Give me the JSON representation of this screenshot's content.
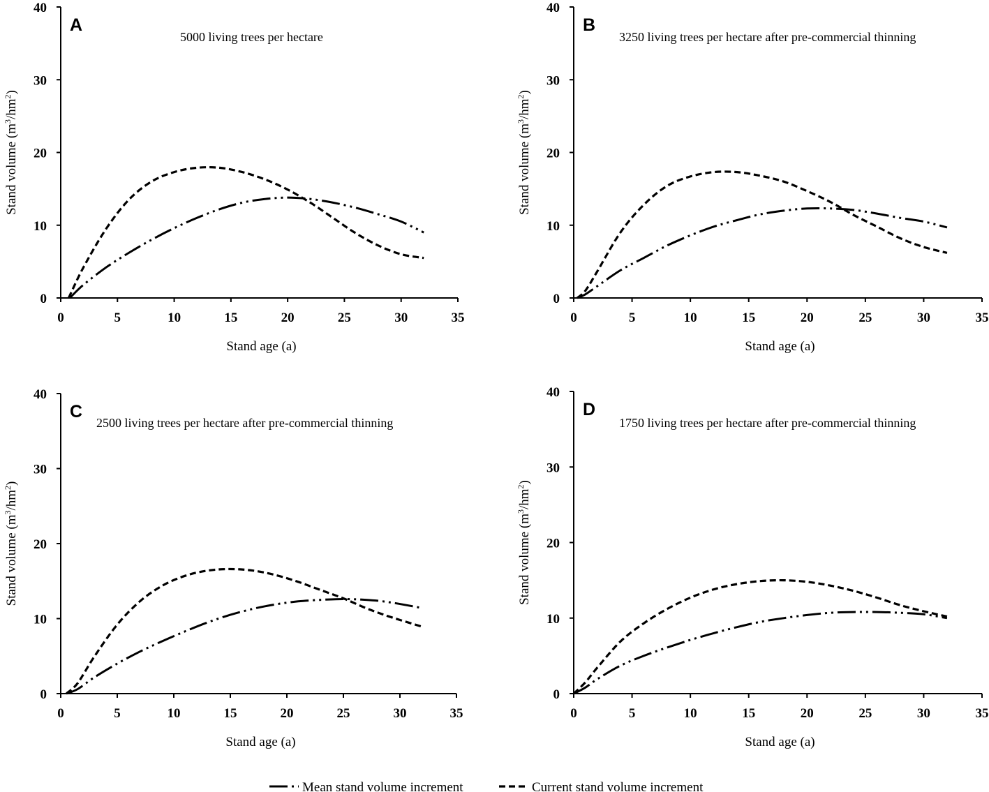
{
  "legend": {
    "mean": "Mean stand volume increment",
    "current": "Current stand volume increment"
  },
  "chart_data": [
    {
      "panel": "A",
      "type": "line",
      "title": "5000 living trees per hectare",
      "xlabel": "Stand age (a)",
      "ylabel": "Stand volume (m3/hm2)",
      "xlim": [
        0,
        35
      ],
      "ylim": [
        0,
        40
      ],
      "xticks": [
        0,
        5,
        10,
        15,
        20,
        25,
        30,
        35
      ],
      "yticks": [
        0,
        10,
        20,
        30,
        40
      ],
      "series": [
        {
          "name": "Mean stand volume increment",
          "style": "dash-dot-dot",
          "x": [
            0.8,
            2,
            4,
            6,
            8,
            10,
            12,
            14,
            16,
            18,
            20,
            22,
            24,
            26,
            28,
            30,
            32
          ],
          "y": [
            0,
            1.8,
            4.2,
            6.2,
            8.0,
            9.6,
            11.0,
            12.2,
            13.1,
            13.6,
            13.8,
            13.6,
            13.1,
            12.4,
            11.5,
            10.5,
            9.0
          ]
        },
        {
          "name": "Current stand volume increment",
          "style": "dash",
          "x": [
            0.7,
            2,
            4,
            6,
            8,
            10,
            12,
            14,
            16,
            18,
            20,
            22,
            24,
            26,
            28,
            30,
            32
          ],
          "y": [
            0,
            4.2,
            9.5,
            13.5,
            16.0,
            17.3,
            17.9,
            17.9,
            17.3,
            16.3,
            14.9,
            13.1,
            11.0,
            8.9,
            7.2,
            6.0,
            5.5
          ]
        }
      ]
    },
    {
      "panel": "B",
      "type": "line",
      "title": "3250 living trees per hectare after pre-commercial thinning",
      "xlabel": "Stand age (a)",
      "ylabel": "Stand volume (m3/hm2)",
      "xlim": [
        0,
        35
      ],
      "ylim": [
        0,
        40
      ],
      "xticks": [
        0,
        5,
        10,
        15,
        20,
        25,
        30,
        35
      ],
      "yticks": [
        0,
        10,
        20,
        30,
        40
      ],
      "series": [
        {
          "name": "Mean stand volume increment",
          "style": "dash-dot-dot",
          "x": [
            0.3,
            1,
            2,
            4,
            6,
            8,
            10,
            12,
            14,
            16,
            18,
            20,
            22,
            24,
            26,
            28,
            30,
            32
          ],
          "y": [
            0,
            0.5,
            1.6,
            3.8,
            5.5,
            7.2,
            8.6,
            9.8,
            10.7,
            11.5,
            12.0,
            12.3,
            12.3,
            12.1,
            11.6,
            11.0,
            10.5,
            9.7
          ]
        },
        {
          "name": "Current stand volume increment",
          "style": "dash",
          "x": [
            0.3,
            1,
            2,
            4,
            6,
            8,
            10,
            12,
            14,
            16,
            18,
            20,
            22,
            24,
            26,
            28,
            30,
            32
          ],
          "y": [
            0,
            1.0,
            3.6,
            9.0,
            12.8,
            15.4,
            16.7,
            17.3,
            17.3,
            16.8,
            16.0,
            14.7,
            13.2,
            11.4,
            9.8,
            8.2,
            7.0,
            6.2
          ]
        }
      ]
    },
    {
      "panel": "C",
      "type": "line",
      "title": "2500 living trees per hectare after pre-commercial thinning",
      "xlabel": "Stand age (a)",
      "ylabel": "Stand volume (m3/hm2)",
      "xlim": [
        0,
        35
      ],
      "ylim": [
        0,
        40
      ],
      "xticks": [
        0,
        5,
        10,
        15,
        20,
        25,
        30,
        35
      ],
      "yticks": [
        0,
        10,
        20,
        30,
        40
      ],
      "series": [
        {
          "name": "Mean stand volume increment",
          "style": "dash-dot-dot",
          "x": [
            0.5,
            1.5,
            3,
            5,
            7,
            9,
            11,
            13,
            15,
            17,
            19,
            21,
            23,
            25,
            27,
            29,
            32
          ],
          "y": [
            0,
            0.6,
            2.2,
            4.0,
            5.6,
            7.0,
            8.3,
            9.5,
            10.5,
            11.3,
            11.9,
            12.3,
            12.5,
            12.6,
            12.5,
            12.2,
            11.4
          ]
        },
        {
          "name": "Current stand volume increment",
          "style": "dash",
          "x": [
            0.5,
            1.5,
            3,
            5,
            7,
            9,
            11,
            13,
            15,
            17,
            19,
            21,
            23,
            25,
            27,
            29,
            32
          ],
          "y": [
            0,
            1.4,
            5.0,
            9.2,
            12.3,
            14.4,
            15.7,
            16.4,
            16.6,
            16.4,
            15.8,
            14.9,
            13.8,
            12.7,
            11.4,
            10.3,
            8.9
          ]
        }
      ]
    },
    {
      "panel": "D",
      "type": "line",
      "title": "1750 living trees per hectare after pre-commercial thinning",
      "xlabel": "Stand age (a)",
      "ylabel": "Stand volume (m3/hm2)",
      "xlim": [
        0,
        35
      ],
      "ylim": [
        0,
        40
      ],
      "xticks": [
        0,
        5,
        10,
        15,
        20,
        25,
        30,
        35
      ],
      "yticks": [
        0,
        10,
        20,
        30,
        40
      ],
      "series": [
        {
          "name": "Mean stand volume increment",
          "style": "dash-dot-dot",
          "x": [
            0,
            1,
            2,
            4,
            6,
            8,
            10,
            12,
            14,
            16,
            18,
            20,
            22,
            24,
            26,
            28,
            30,
            32
          ],
          "y": [
            0,
            0.8,
            1.9,
            3.7,
            5.0,
            6.1,
            7.1,
            8.0,
            8.8,
            9.5,
            10.0,
            10.4,
            10.7,
            10.8,
            10.8,
            10.7,
            10.5,
            10.0
          ]
        },
        {
          "name": "Current stand volume increment",
          "style": "dash",
          "x": [
            0,
            1,
            2,
            4,
            6,
            8,
            10,
            12,
            14,
            16,
            18,
            20,
            22,
            24,
            26,
            28,
            30,
            32
          ],
          "y": [
            0,
            1.5,
            3.4,
            6.9,
            9.3,
            11.2,
            12.7,
            13.8,
            14.5,
            14.9,
            15.0,
            14.8,
            14.3,
            13.6,
            12.7,
            11.7,
            10.9,
            10.2
          ]
        }
      ]
    }
  ]
}
